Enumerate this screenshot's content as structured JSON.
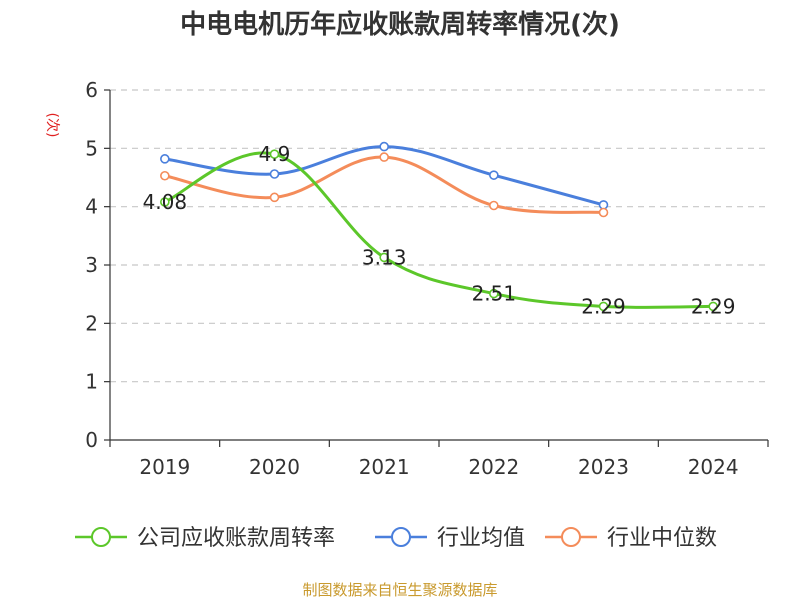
{
  "chart_data": {
    "type": "line",
    "title": "中电电机历年应收账款周转率情况(次)",
    "ylabel": "(次)",
    "xlabel": "",
    "categories": [
      "2019",
      "2020",
      "2021",
      "2022",
      "2023",
      "2024"
    ],
    "ylim": [
      0,
      6
    ],
    "yticks": [
      0,
      1,
      2,
      3,
      4,
      5,
      6
    ],
    "ytick_labels": [
      "0",
      "1",
      "2",
      "3",
      "4",
      "5",
      "6"
    ],
    "grid": true,
    "legend_position": "bottom",
    "series": [
      {
        "name": "公司应收账款周转率",
        "color": "#5cc72a",
        "values": [
          4.08,
          4.9,
          3.13,
          2.51,
          2.29,
          2.29
        ],
        "labels": [
          "4.08",
          "4.9",
          "3.13",
          "2.51",
          "2.29",
          "2.29"
        ]
      },
      {
        "name": "行业均值",
        "color": "#4a7fdc",
        "values": [
          4.82,
          4.56,
          5.03,
          4.54,
          4.03,
          null
        ],
        "labels": []
      },
      {
        "name": "行业中位数",
        "color": "#f48c5a",
        "values": [
          4.53,
          4.16,
          4.85,
          4.02,
          3.9,
          null
        ],
        "labels": []
      }
    ]
  },
  "source": "制图数据来自恒生聚源数据库"
}
